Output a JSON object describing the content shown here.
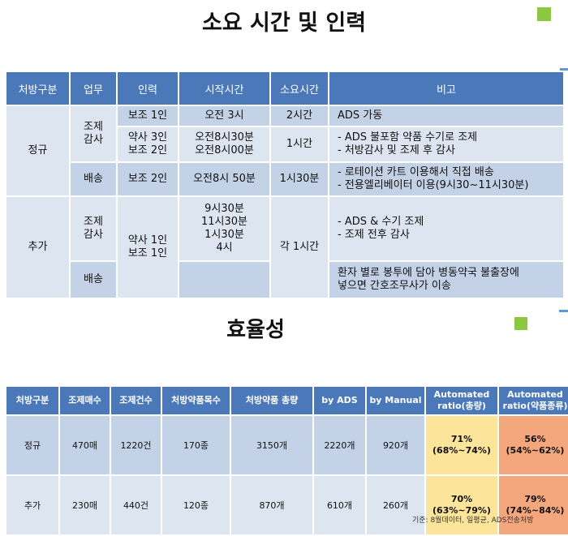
{
  "section1": {
    "title": "소요 시간 및 인력",
    "headers": [
      "처방구분",
      "업무",
      "인력",
      "시작시간",
      "소요시간",
      "비고"
    ],
    "regular": {
      "category": "정규",
      "task_prep": "조제\n감사",
      "rows": [
        {
          "staff": "보조 1인",
          "start": "오전 3시",
          "duration": "2시간",
          "note": [
            "ADS 가동"
          ]
        },
        {
          "staff": [
            "약사 3인",
            "보조 2인"
          ],
          "start": [
            "오전8시30분",
            "오전8시00분"
          ],
          "duration": "1시간",
          "note": [
            "- ADS 불포함 약품 수기로 조제",
            "- 처방감사 및 조제 후 감사"
          ]
        }
      ],
      "task_delivery": "배송",
      "delivery": {
        "staff": "보조 2인",
        "start": "오전8시 50분",
        "duration": "1시30분",
        "note": [
          "- 로테이션 카트 이용해서 직접 배송",
          "- 전용엘리베이터 이용(9시30~11시30분)"
        ]
      }
    },
    "extra": {
      "category": "추가",
      "task_prep": "조제\n감사",
      "staff": [
        "약사 1인",
        "보조 1인"
      ],
      "start": [
        "9시30분",
        "11시30분",
        "1시30분",
        "4시"
      ],
      "duration": "각 1시간",
      "note": [
        "- ADS & 수기 조제",
        "- 조제 전후 감사"
      ],
      "task_delivery": "배송",
      "delivery_note": [
        "환자 별로 봉투에 담아 병동약국 불출장에",
        "넣으면 간호조무사가 이송"
      ]
    }
  },
  "section2": {
    "title": "효율성",
    "headers": [
      "처방구분",
      "조제매수",
      "조제건수",
      "처방약품목수",
      "처방약품 총량",
      "by ADS",
      "by Manual",
      "Automated\nratio(총량)",
      "Automated\nratio(약품종류)"
    ],
    "rows": [
      {
        "category": "정규",
        "sheets": "470매",
        "cases": "1220건",
        "items": "170종",
        "total": "3150개",
        "ads": "2220개",
        "manual": "920개",
        "ratio_total": [
          "71%",
          "(68%~74%)"
        ],
        "ratio_kind": [
          "56%",
          "(54%~62%)"
        ]
      },
      {
        "category": "추가",
        "sheets": "230매",
        "cases": "440건",
        "items": "120종",
        "total": "870개",
        "ads": "610개",
        "manual": "260개",
        "ratio_total": [
          "70%",
          "(63%~79%)"
        ],
        "ratio_kind": [
          "79%",
          "(74%~84%)"
        ]
      }
    ],
    "footnote": "기준: 8월데이터, 일평균, ADS전송처방"
  },
  "colors": {
    "header_blue": "#4a78b8",
    "light_blue": "#dde5f1",
    "mid_blue": "#c4d2e7",
    "yellow": "#fce49b",
    "orange": "#f4a67c",
    "accent_green": "#8dc63f"
  }
}
